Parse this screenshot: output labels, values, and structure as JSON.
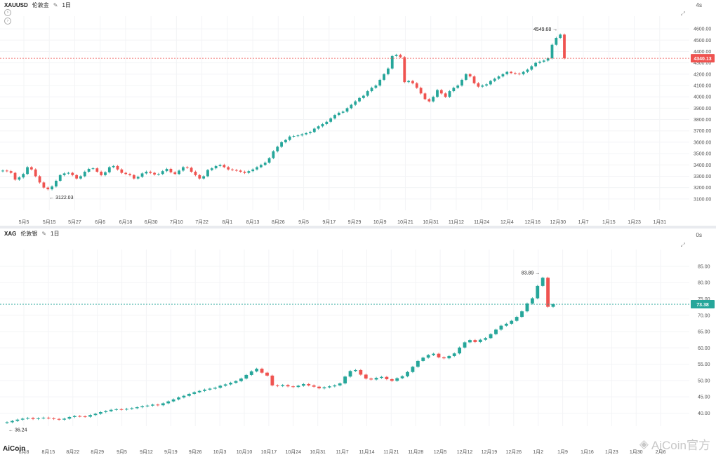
{
  "top": {
    "symbol": "XAUUSD",
    "name": "伦敦金",
    "interval": "1日",
    "timer": "4s",
    "current_price": "4340.13",
    "peak_label": "4549.68",
    "low_label": "3122.03",
    "y_ticks": [
      "4600.00",
      "4500.00",
      "4400.00",
      "4300.00",
      "4200.00",
      "4100.00",
      "4000.00",
      "3900.00",
      "3800.00",
      "3700.00",
      "3600.00",
      "3500.00",
      "3400.00",
      "3300.00",
      "3200.00",
      "3100.00"
    ],
    "x_ticks": [
      "5月5",
      "5月15",
      "5月27",
      "6月6",
      "6月18",
      "6月30",
      "7月10",
      "7月22",
      "8月1",
      "8月13",
      "8月26",
      "9月5",
      "9月17",
      "9月29",
      "10月9",
      "10月21",
      "10月31",
      "11月12",
      "11月24",
      "12月4",
      "12月16",
      "12月30",
      "1月7",
      "1月15",
      "1月23",
      "1月31"
    ],
    "closes": [
      3350,
      3345,
      3330,
      3270,
      3290,
      3320,
      3380,
      3360,
      3300,
      3245,
      3200,
      3185,
      3210,
      3260,
      3310,
      3325,
      3330,
      3310,
      3280,
      3300,
      3340,
      3365,
      3370,
      3340,
      3310,
      3335,
      3380,
      3390,
      3360,
      3330,
      3320,
      3310,
      3280,
      3295,
      3325,
      3340,
      3330,
      3315,
      3320,
      3345,
      3365,
      3335,
      3320,
      3350,
      3380,
      3375,
      3340,
      3310,
      3280,
      3300,
      3355,
      3370,
      3390,
      3400,
      3380,
      3360,
      3355,
      3350,
      3340,
      3330,
      3345,
      3360,
      3380,
      3400,
      3420,
      3460,
      3520,
      3560,
      3600,
      3620,
      3650,
      3655,
      3660,
      3670,
      3680,
      3690,
      3720,
      3740,
      3760,
      3780,
      3810,
      3840,
      3860,
      3870,
      3900,
      3930,
      3960,
      3990,
      4010,
      4050,
      4080,
      4100,
      4150,
      4200,
      4250,
      4360,
      4370,
      4350,
      4130,
      4140,
      4120,
      4080,
      4030,
      3980,
      3960,
      4000,
      4060,
      4030,
      4000,
      4050,
      4080,
      4100,
      4150,
      4200,
      4180,
      4120,
      4090,
      4100,
      4110,
      4140,
      4160,
      4180,
      4200,
      4220,
      4210,
      4205,
      4200,
      4220,
      4240,
      4270,
      4300,
      4310,
      4320,
      4340,
      4460,
      4520,
      4549,
      4340
    ],
    "price_min": 3000,
    "price_max": 4650
  },
  "bottom": {
    "symbol": "XAG",
    "name": "伦敦银",
    "interval": "1日",
    "timer": "0s",
    "current_price": "73.38",
    "peak_label": "83.89",
    "low_label": "36.24",
    "y_ticks": [
      "85.00",
      "80.00",
      "75.00",
      "70.00",
      "65.00",
      "60.00",
      "55.00",
      "50.00",
      "45.00",
      "40.00"
    ],
    "x_ticks": [
      "8月8",
      "8月15",
      "8月22",
      "8月29",
      "9月5",
      "9月12",
      "9月19",
      "9月26",
      "10月3",
      "10月10",
      "10月17",
      "10月24",
      "10月31",
      "11月7",
      "11月14",
      "11月21",
      "11月28",
      "12月5",
      "12月12",
      "12月19",
      "12月26",
      "1月2",
      "1月9",
      "1月16",
      "1月23",
      "1月30",
      "2月6"
    ],
    "closes": [
      37.2,
      37.6,
      38.0,
      38.3,
      38.5,
      38.2,
      38.4,
      38.6,
      38.4,
      38.2,
      38.0,
      38.3,
      38.8,
      39.1,
      39.0,
      38.9,
      39.4,
      39.8,
      40.3,
      40.6,
      41.0,
      41.2,
      41.1,
      41.3,
      41.5,
      41.8,
      42.1,
      42.3,
      42.6,
      42.4,
      43.0,
      43.6,
      44.2,
      44.8,
      45.3,
      45.9,
      46.4,
      46.8,
      47.2,
      47.5,
      47.8,
      48.4,
      48.8,
      49.3,
      49.8,
      50.6,
      51.7,
      52.8,
      53.6,
      52.4,
      51.5,
      48.5,
      48.3,
      48.6,
      48.2,
      48.0,
      48.4,
      48.9,
      48.5,
      48.1,
      47.6,
      47.9,
      48.2,
      48.5,
      49.1,
      51.2,
      52.9,
      53.2,
      51.8,
      50.6,
      50.3,
      50.8,
      51.1,
      50.4,
      49.9,
      50.7,
      51.3,
      52.6,
      54.2,
      56.0,
      57.0,
      57.8,
      58.2,
      57.1,
      56.8,
      57.5,
      58.3,
      60.1,
      61.7,
      62.4,
      61.8,
      62.5,
      63.0,
      64.2,
      65.6,
      66.8,
      67.4,
      68.3,
      69.5,
      71.2,
      73.6,
      75.2,
      79.0,
      81.5,
      72.6,
      73.38
    ],
    "price_min": 36,
    "price_max": 88
  },
  "watermark": "AiCoin官方",
  "logo": "AiCoin",
  "colors": {
    "up": "#26a69a",
    "down": "#ef5350",
    "price_tag_top": "#ef5350",
    "price_tag_bottom": "#26a69a",
    "grid": "#f3f4f6",
    "axis_text": "#555555"
  }
}
